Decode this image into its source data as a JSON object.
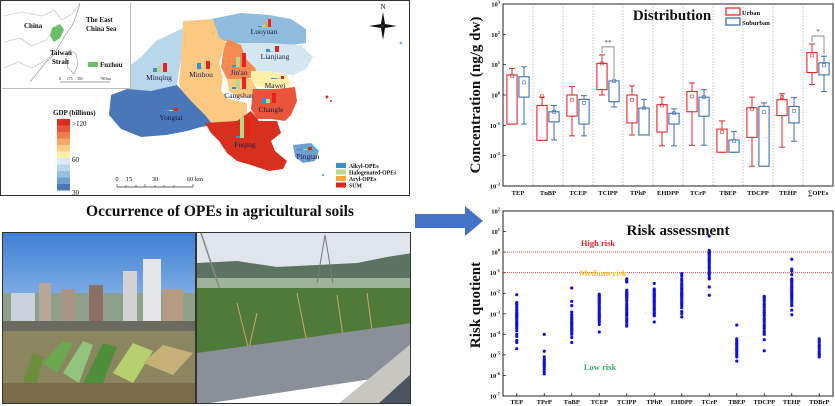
{
  "map": {
    "inset": {
      "labels": [
        "China",
        "The East China Sea",
        "Taiwan Strait"
      ],
      "legend_label": "Fuzhou",
      "scale_labels": [
        "0",
        "175",
        "350",
        "700 km"
      ],
      "highlight_color": "#6abf69"
    },
    "north_label": "N",
    "gdp_legend": {
      "title": "GDP (billions)",
      "tick_labels": [
        ">120",
        "60",
        "30"
      ],
      "colors": [
        "#d7301f",
        "#e8553a",
        "#f07d4e",
        "#f9a866",
        "#fdcc87",
        "#fdf0a6",
        "#d8ecf3",
        "#b6d7ea",
        "#96c0e0",
        "#6f9fd0",
        "#4a77ba"
      ]
    },
    "scale_bar_labels": [
      "0",
      "15",
      "30",
      "60 km"
    ],
    "districts": [
      {
        "name": "Luoyuan",
        "gdp_level": "low"
      },
      {
        "name": "Lianjiang",
        "gdp_level": "mid-low"
      },
      {
        "name": "Minqing",
        "gdp_level": "mid-low"
      },
      {
        "name": "Minhou",
        "gdp_level": "mid-high"
      },
      {
        "name": "Jin'an",
        "gdp_level": "high"
      },
      {
        "name": "Mawei",
        "gdp_level": "mid"
      },
      {
        "name": "Cangshan",
        "gdp_level": "mid-high"
      },
      {
        "name": "Changle",
        "gdp_level": "high"
      },
      {
        "name": "Yongtai",
        "gdp_level": "lowest"
      },
      {
        "name": "Fuqing",
        "gdp_level": "highest"
      },
      {
        "name": "Pingtan",
        "gdp_level": "low"
      }
    ],
    "ope_legend": [
      {
        "label": "Alkyl-OPEs",
        "color": "#3a8fd0"
      },
      {
        "label": "Halogenated-OPEs",
        "color": "#b8d98a"
      },
      {
        "label": "Aryl-OPEs",
        "color": "#f5a93b"
      },
      {
        "label": "SUM",
        "color": "#e8231e"
      }
    ]
  },
  "main_title": "Occurrence of OPEs in agricultural soils",
  "photos": [
    {
      "name": "urban-farmland-photo",
      "description": "Vegetable plots in front of high-rise buildings"
    },
    {
      "name": "suburban-field-photo",
      "description": "Staked crop rows near power pylons and hills"
    }
  ],
  "arrow_color": "#4472c4",
  "chart_data": [
    {
      "type": "box",
      "title": "Distribution",
      "xlabel": "",
      "ylabel": "Concentration (ng/g dw)",
      "yscale": "log",
      "ylim": [
        0.001,
        1000
      ],
      "y_tick_labels": [
        "10-3",
        "10-2",
        "10-1",
        "100",
        "101",
        "102",
        "103"
      ],
      "categories": [
        "TEP",
        "TnBP",
        "TCEP",
        "TCIPP",
        "TPhP",
        "EHDPP",
        "TCrP",
        "TBEP",
        "TDCPP",
        "TEHP",
        "∑OPEs"
      ],
      "legend": [
        {
          "name": "Urban",
          "color": "#e8262a"
        },
        {
          "name": "Suburban",
          "color": "#3d6fb0"
        }
      ],
      "legend_position": "top-right",
      "series": [
        {
          "name": "Urban",
          "color": "#e8262a",
          "boxes": [
            {
              "min": 0.11,
              "q1": 0.11,
              "median": 4.2,
              "q3": 4.6,
              "max": 7.5,
              "mean": 4.2
            },
            {
              "min": 0.032,
              "q1": 0.032,
              "median": 0.45,
              "q3": 0.45,
              "max": 0.85,
              "mean": 0.9
            },
            {
              "min": 0.045,
              "q1": 0.2,
              "median": 0.7,
              "q3": 1.0,
              "max": 1.9,
              "mean": 0.7
            },
            {
              "min": 1.0,
              "q1": 1.5,
              "median": 10,
              "q3": 11,
              "max": 21,
              "mean": 11
            },
            {
              "min": 0.048,
              "q1": 0.12,
              "median": 0.7,
              "q3": 1.0,
              "max": 2.0,
              "mean": 0.7
            },
            {
              "min": 0.021,
              "q1": 0.06,
              "median": 0.45,
              "q3": 0.48,
              "max": 0.85,
              "mean": 0.45
            },
            {
              "min": 0.022,
              "q1": 0.28,
              "median": 0.9,
              "q3": 1.3,
              "max": 2.5,
              "mean": 0.9
            },
            {
              "min": 0.013,
              "q1": 0.013,
              "median": 0.06,
              "q3": 0.075,
              "max": 0.14,
              "mean": 0.06
            },
            {
              "min": 0.0045,
              "q1": 0.04,
              "median": 0.35,
              "q3": 0.38,
              "max": 0.85,
              "mean": 0.35
            },
            {
              "min": 0.019,
              "q1": 0.21,
              "median": 0.85,
              "q3": 0.7,
              "max": 1.1,
              "mean": 0.85
            },
            {
              "min": 2.2,
              "q1": 5.5,
              "median": 20,
              "q3": 25,
              "max": 48,
              "mean": 20
            }
          ]
        },
        {
          "name": "Suburban",
          "color": "#3d6fb0",
          "boxes": [
            {
              "min": 0.11,
              "q1": 0.85,
              "median": 2.6,
              "q3": 4.0,
              "max": 8.5,
              "mean": 2.6
            },
            {
              "min": 0.033,
              "q1": 0.13,
              "median": 0.28,
              "q3": 0.28,
              "max": 0.45,
              "mean": 0.28
            },
            {
              "min": 0.045,
              "q1": 0.11,
              "median": 0.55,
              "q3": 0.72,
              "max": 0.95,
              "mean": 0.55
            },
            {
              "min": 0.4,
              "q1": 0.6,
              "median": 2.9,
              "q3": 2.9,
              "max": 2.9,
              "mean": 2.9
            },
            {
              "min": 0.048,
              "q1": 0.048,
              "median": 0.37,
              "q3": 0.37,
              "max": 0.72,
              "mean": 0.37
            },
            {
              "min": 0.021,
              "q1": 0.11,
              "median": 0.25,
              "q3": 0.25,
              "max": 0.35,
              "mean": 0.25
            },
            {
              "min": 0.022,
              "q1": 0.2,
              "median": 0.85,
              "q3": 0.85,
              "max": 1.5,
              "mean": 0.85
            },
            {
              "min": 0.013,
              "q1": 0.013,
              "median": 0.03,
              "q3": 0.033,
              "max": 0.062,
              "mean": 0.03
            },
            {
              "min": 0.0045,
              "q1": 0.0045,
              "median": 0.27,
              "q3": 0.42,
              "max": 0.55,
              "mean": 0.27
            },
            {
              "min": 0.03,
              "q1": 0.12,
              "median": 0.3,
              "q3": 0.42,
              "max": 0.82,
              "mean": 0.3
            },
            {
              "min": 1.3,
              "q1": 4.6,
              "median": 9.5,
              "q3": 11.5,
              "max": 19,
              "mean": 9.5
            }
          ]
        }
      ],
      "annotations": [
        {
          "category": "TCIPP",
          "text": "**"
        },
        {
          "category": "∑OPEs",
          "text": "*"
        }
      ]
    },
    {
      "type": "scatter",
      "title": "Risk assessment",
      "xlabel": "",
      "ylabel": "Risk quotient",
      "yscale": "log",
      "ylim": [
        1e-07,
        100
      ],
      "y_tick_labels": [
        "10-7",
        "10-6",
        "10-5",
        "10-4",
        "10-3",
        "10-2",
        "10-1",
        "100",
        "101",
        "102"
      ],
      "categories": [
        "TEP",
        "TPrP",
        "TnBP",
        "TCEP",
        "TCIPP",
        "TPhP",
        "EHDPP",
        "TCrP",
        "TBEP",
        "TDCPP",
        "TEHP",
        "TDBrP"
      ],
      "point_color": "#1010e0",
      "thresholds": [
        {
          "value": 1,
          "color": "#e8262a",
          "style": "dotted"
        },
        {
          "value": 0.1,
          "color": "#e8262a",
          "style": "dotted"
        }
      ],
      "zone_labels": [
        {
          "text": "High risk",
          "color": "#e8262a"
        },
        {
          "text": "Medium risk",
          "color": "#f4c430"
        },
        {
          "text": "Low risk",
          "color": "#3aa86b"
        }
      ],
      "series": [
        {
          "name": "TEP",
          "values": [
            0.0085,
            0.0035,
            0.003,
            0.0025,
            0.002,
            0.0015,
            0.0012,
            0.001,
            0.0009,
            0.0008,
            0.0007,
            0.0006,
            0.0005,
            0.0004,
            0.00035,
            0.0003,
            0.00025,
            0.0002,
            0.00015,
            0.0001,
            8e-05,
            5e-05,
            4e-05,
            2e-05
          ]
        },
        {
          "name": "TPrP",
          "values": [
            0.0001,
            1.5e-05,
            8e-06,
            6e-06,
            5e-06,
            4e-06,
            3.5e-06,
            3e-06,
            2.5e-06,
            2e-06,
            1.5e-06,
            1.2e-06
          ]
        },
        {
          "name": "TnBP",
          "values": [
            0.018,
            0.004,
            0.0025,
            0.0012,
            0.0009,
            0.0007,
            0.0006,
            0.0005,
            0.0004,
            0.00035,
            0.0003,
            0.00025,
            0.0002,
            0.00018,
            0.00015,
            0.00012,
            0.0001,
            7e-05,
            4e-05
          ]
        },
        {
          "name": "TCEP",
          "values": [
            0.009,
            0.008,
            0.007,
            0.006,
            0.005,
            0.0045,
            0.004,
            0.0035,
            0.003,
            0.0025,
            0.002,
            0.0018,
            0.0015,
            0.0012,
            0.001,
            0.0009,
            0.0008,
            0.0007,
            0.0006,
            0.0005,
            0.0004,
            0.0003,
            0.00013
          ]
        },
        {
          "name": "TCIPP",
          "values": [
            0.05,
            0.04,
            0.035,
            0.014,
            0.012,
            0.01,
            0.009,
            0.008,
            0.007,
            0.006,
            0.005,
            0.004,
            0.003,
            0.0025,
            0.002,
            0.0018,
            0.0015,
            0.0012,
            0.001,
            0.0009,
            0.0008,
            0.0006,
            0.0005,
            0.0004,
            0.0003,
            0.00025
          ]
        },
        {
          "name": "TPhP",
          "values": [
            0.03,
            0.016,
            0.014,
            0.012,
            0.01,
            0.009,
            0.008,
            0.007,
            0.006,
            0.005,
            0.0045,
            0.004,
            0.0035,
            0.003,
            0.0025,
            0.002,
            0.0018,
            0.0015,
            0.0012,
            0.001,
            0.0009,
            0.0008,
            0.0004
          ]
        },
        {
          "name": "EHDPP",
          "values": [
            0.09,
            0.07,
            0.05,
            0.04,
            0.03,
            0.025,
            0.02,
            0.017,
            0.015,
            0.012,
            0.01,
            0.009,
            0.008,
            0.007,
            0.006,
            0.005,
            0.004,
            0.0035,
            0.003,
            0.0025,
            0.002,
            0.0013,
            0.001,
            0.0007
          ]
        },
        {
          "name": "TCrP",
          "values": [
            6,
            1.2,
            1.1,
            1.0,
            0.9,
            0.8,
            0.7,
            0.6,
            0.5,
            0.45,
            0.4,
            0.35,
            0.3,
            0.25,
            0.2,
            0.18,
            0.15,
            0.12,
            0.1,
            0.09,
            0.08,
            0.06,
            0.05,
            0.02,
            0.008
          ]
        },
        {
          "name": "TBEP",
          "values": [
            0.00028,
            6e-05,
            5e-05,
            4e-05,
            3.5e-05,
            3e-05,
            2.5e-05,
            2e-05,
            1.8e-05,
            1.5e-05,
            1.2e-05,
            1e-05,
            8e-06,
            5e-06
          ]
        },
        {
          "name": "TDCPP",
          "values": [
            0.007,
            0.006,
            0.005,
            0.004,
            0.003,
            0.0025,
            0.002,
            0.0015,
            0.0012,
            0.001,
            0.0008,
            0.0006,
            0.0005,
            0.0004,
            0.0003,
            0.00025,
            0.0002,
            0.00015,
            0.00012,
            0.0001,
            5.5e-05,
            1.6e-05
          ]
        },
        {
          "name": "TEHP",
          "values": [
            0.45,
            0.15,
            0.12,
            0.08,
            0.05,
            0.045,
            0.04,
            0.035,
            0.03,
            0.025,
            0.02,
            0.018,
            0.015,
            0.012,
            0.01,
            0.009,
            0.008,
            0.007,
            0.006,
            0.005,
            0.004,
            0.003,
            0.0025,
            0.0015,
            0.0009
          ]
        },
        {
          "name": "TDBrP",
          "values": [
            6e-05,
            5e-05,
            4e-05,
            3e-05,
            2.5e-05,
            2e-05,
            1.5e-05,
            1.2e-05,
            1e-05,
            8e-06
          ]
        }
      ]
    }
  ]
}
